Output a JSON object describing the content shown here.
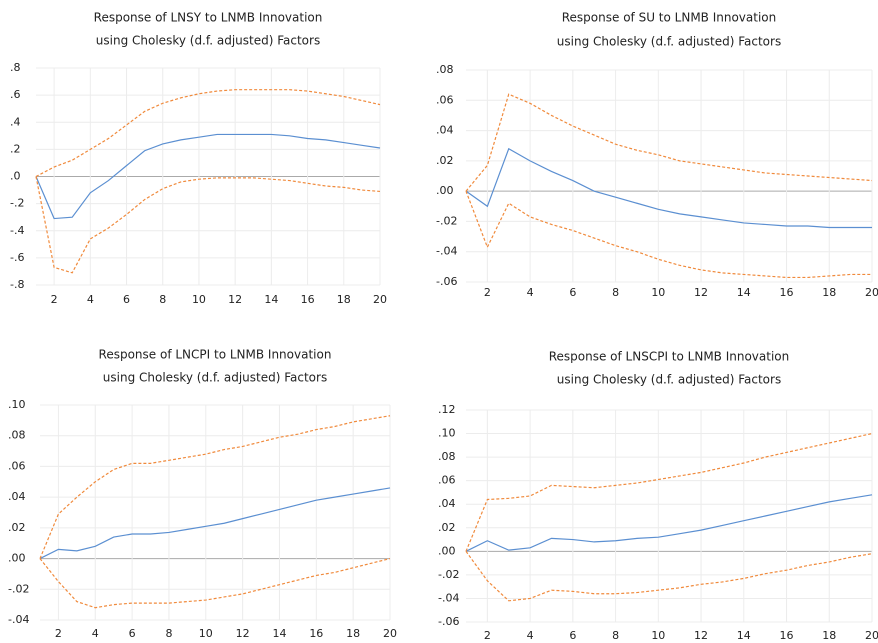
{
  "chart_data": [
    {
      "type": "line",
      "title": "Response of LNSY to LNMB Innovation",
      "subtitle": "using Cholesky (d.f. adjusted) Factors",
      "x": [
        1,
        2,
        3,
        4,
        5,
        6,
        7,
        8,
        9,
        10,
        11,
        12,
        13,
        14,
        15,
        16,
        17,
        18,
        19,
        20
      ],
      "xlim": [
        1,
        20
      ],
      "xticks": [
        2,
        4,
        6,
        8,
        10,
        12,
        14,
        16,
        18,
        20
      ],
      "ylim": [
        -0.8,
        0.8
      ],
      "yticks": [
        {
          "value": -0.8,
          "label": "-.8"
        },
        {
          "value": -0.6,
          "label": "-.6"
        },
        {
          "value": -0.4,
          "label": "-.4"
        },
        {
          "value": -0.2,
          "label": "-.2"
        },
        {
          "value": 0,
          "label": ".0"
        },
        {
          "value": 0.2,
          "label": ".2"
        },
        {
          "value": 0.4,
          "label": ".4"
        },
        {
          "value": 0.6,
          "label": ".6"
        },
        {
          "value": 0.8,
          "label": ".8"
        }
      ],
      "grid": true,
      "series": [
        {
          "color": "#5b8fd1",
          "dashed": false,
          "values": [
            0,
            -0.31,
            -0.3,
            -0.12,
            -0.03,
            0.08,
            0.19,
            0.24,
            0.27,
            0.29,
            0.31,
            0.31,
            0.31,
            0.31,
            0.3,
            0.28,
            0.27,
            0.25,
            0.23,
            0.21
          ]
        },
        {
          "color": "#f08a3c",
          "dashed": true,
          "values": [
            0,
            0.07,
            0.12,
            0.2,
            0.28,
            0.38,
            0.48,
            0.54,
            0.58,
            0.61,
            0.63,
            0.64,
            0.64,
            0.64,
            0.64,
            0.63,
            0.61,
            0.59,
            0.56,
            0.53
          ]
        },
        {
          "color": "#f08a3c",
          "dashed": true,
          "values": [
            0,
            -0.67,
            -0.71,
            -0.46,
            -0.38,
            -0.28,
            -0.17,
            -0.09,
            -0.04,
            -0.02,
            -0.01,
            -0.01,
            -0.01,
            -0.02,
            -0.03,
            -0.05,
            -0.07,
            -0.08,
            -0.1,
            -0.11
          ]
        }
      ]
    },
    {
      "type": "line",
      "title": "Response of SU to LNMB Innovation",
      "subtitle": "using Cholesky (d.f. adjusted) Factors",
      "x": [
        1,
        2,
        3,
        4,
        5,
        6,
        7,
        8,
        9,
        10,
        11,
        12,
        13,
        14,
        15,
        16,
        17,
        18,
        19,
        20
      ],
      "xlim": [
        1,
        20
      ],
      "xticks": [
        2,
        4,
        6,
        8,
        10,
        12,
        14,
        16,
        18,
        20
      ],
      "ylim": [
        -0.06,
        0.08
      ],
      "yticks": [
        {
          "value": -0.06,
          "label": "-.06"
        },
        {
          "value": -0.04,
          "label": "-.04"
        },
        {
          "value": -0.02,
          "label": "-.02"
        },
        {
          "value": 0,
          "label": ".00"
        },
        {
          "value": 0.02,
          "label": ".02"
        },
        {
          "value": 0.04,
          "label": ".04"
        },
        {
          "value": 0.06,
          "label": ".06"
        },
        {
          "value": 0.08,
          "label": ".08"
        }
      ],
      "grid": true,
      "series": [
        {
          "color": "#5b8fd1",
          "dashed": false,
          "values": [
            0,
            -0.01,
            0.028,
            0.02,
            0.013,
            0.007,
            0.0,
            -0.004,
            -0.008,
            -0.012,
            -0.015,
            -0.017,
            -0.019,
            -0.021,
            -0.022,
            -0.023,
            -0.023,
            -0.024,
            -0.024,
            -0.024
          ]
        },
        {
          "color": "#f08a3c",
          "dashed": true,
          "values": [
            0,
            0.017,
            0.064,
            0.058,
            0.05,
            0.043,
            0.037,
            0.031,
            0.027,
            0.024,
            0.02,
            0.018,
            0.016,
            0.014,
            0.012,
            0.011,
            0.01,
            0.009,
            0.008,
            0.007
          ]
        },
        {
          "color": "#f08a3c",
          "dashed": true,
          "values": [
            0,
            -0.037,
            -0.008,
            -0.017,
            -0.022,
            -0.026,
            -0.031,
            -0.036,
            -0.04,
            -0.045,
            -0.049,
            -0.052,
            -0.054,
            -0.055,
            -0.056,
            -0.057,
            -0.057,
            -0.056,
            -0.055,
            -0.055
          ]
        }
      ]
    },
    {
      "type": "line",
      "title": "Response of LNCPI to LNMB Innovation",
      "subtitle": "using Cholesky (d.f. adjusted) Factors",
      "x": [
        1,
        2,
        3,
        4,
        5,
        6,
        7,
        8,
        9,
        10,
        11,
        12,
        13,
        14,
        15,
        16,
        17,
        18,
        19,
        20
      ],
      "xlim": [
        1,
        20
      ],
      "xticks": [
        2,
        4,
        6,
        8,
        10,
        12,
        14,
        16,
        18,
        20
      ],
      "ylim": [
        -0.04,
        0.1
      ],
      "yticks": [
        {
          "value": -0.04,
          "label": "-.04"
        },
        {
          "value": -0.02,
          "label": "-.02"
        },
        {
          "value": 0,
          "label": ".00"
        },
        {
          "value": 0.02,
          "label": ".02"
        },
        {
          "value": 0.04,
          "label": ".04"
        },
        {
          "value": 0.06,
          "label": ".06"
        },
        {
          "value": 0.08,
          "label": ".08"
        },
        {
          "value": 0.1,
          "label": ".10"
        }
      ],
      "grid": true,
      "series": [
        {
          "color": "#5b8fd1",
          "dashed": false,
          "values": [
            0,
            0.006,
            0.005,
            0.008,
            0.014,
            0.016,
            0.016,
            0.017,
            0.019,
            0.021,
            0.023,
            0.026,
            0.029,
            0.032,
            0.035,
            0.038,
            0.04,
            0.042,
            0.044,
            0.046
          ]
        },
        {
          "color": "#f08a3c",
          "dashed": true,
          "values": [
            0,
            0.029,
            0.04,
            0.05,
            0.058,
            0.062,
            0.062,
            0.064,
            0.066,
            0.068,
            0.071,
            0.073,
            0.076,
            0.079,
            0.081,
            0.084,
            0.086,
            0.089,
            0.091,
            0.093
          ]
        },
        {
          "color": "#f08a3c",
          "dashed": true,
          "values": [
            0,
            -0.015,
            -0.028,
            -0.032,
            -0.03,
            -0.029,
            -0.029,
            -0.029,
            -0.028,
            -0.027,
            -0.025,
            -0.023,
            -0.02,
            -0.017,
            -0.014,
            -0.011,
            -0.009,
            -0.006,
            -0.003,
            0.0
          ]
        }
      ]
    },
    {
      "type": "line",
      "title": "Response of LNSCPI to LNMB Innovation",
      "subtitle": "using Cholesky (d.f. adjusted) Factors",
      "x": [
        1,
        2,
        3,
        4,
        5,
        6,
        7,
        8,
        9,
        10,
        11,
        12,
        13,
        14,
        15,
        16,
        17,
        18,
        19,
        20
      ],
      "xlim": [
        1,
        20
      ],
      "xticks": [
        2,
        4,
        6,
        8,
        10,
        12,
        14,
        16,
        18,
        20
      ],
      "ylim": [
        -0.06,
        0.12
      ],
      "yticks": [
        {
          "value": -0.06,
          "label": "-.06"
        },
        {
          "value": -0.04,
          "label": "-.04"
        },
        {
          "value": -0.02,
          "label": "-.02"
        },
        {
          "value": 0,
          "label": ".00"
        },
        {
          "value": 0.02,
          "label": ".02"
        },
        {
          "value": 0.04,
          "label": ".04"
        },
        {
          "value": 0.06,
          "label": ".06"
        },
        {
          "value": 0.08,
          "label": ".08"
        },
        {
          "value": 0.1,
          "label": ".10"
        },
        {
          "value": 0.12,
          "label": ".12"
        }
      ],
      "grid": true,
      "series": [
        {
          "color": "#5b8fd1",
          "dashed": false,
          "values": [
            0,
            0.009,
            0.001,
            0.003,
            0.011,
            0.01,
            0.008,
            0.009,
            0.011,
            0.012,
            0.015,
            0.018,
            0.022,
            0.026,
            0.03,
            0.034,
            0.038,
            0.042,
            0.045,
            0.048
          ]
        },
        {
          "color": "#f08a3c",
          "dashed": true,
          "values": [
            0,
            0.044,
            0.045,
            0.047,
            0.056,
            0.055,
            0.054,
            0.056,
            0.058,
            0.061,
            0.064,
            0.067,
            0.071,
            0.075,
            0.08,
            0.084,
            0.088,
            0.092,
            0.096,
            0.1
          ]
        },
        {
          "color": "#f08a3c",
          "dashed": true,
          "values": [
            0,
            -0.025,
            -0.042,
            -0.04,
            -0.033,
            -0.034,
            -0.036,
            -0.036,
            -0.035,
            -0.033,
            -0.031,
            -0.028,
            -0.026,
            -0.023,
            -0.019,
            -0.016,
            -0.012,
            -0.009,
            -0.005,
            -0.002
          ]
        }
      ]
    }
  ]
}
